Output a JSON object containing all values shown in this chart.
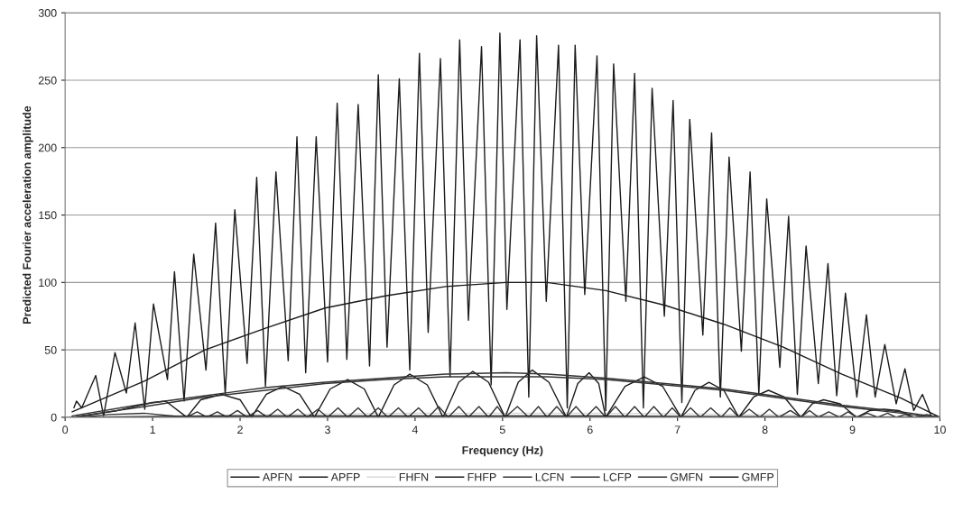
{
  "chart_data": {
    "type": "line",
    "xlabel": "Frequency (Hz)",
    "ylabel": "Predicted Fourier acceleration amplitude",
    "xlim": [
      0,
      10
    ],
    "xticks": [
      0,
      1,
      2,
      3,
      4,
      5,
      6,
      7,
      8,
      9,
      10
    ],
    "ylim": [
      0,
      300
    ],
    "yticks": [
      0,
      50,
      100,
      150,
      200,
      250,
      300
    ],
    "grid": "y",
    "legend": "bottom",
    "series": [
      {
        "name": "APFN",
        "color": "#1a1a1a",
        "x": [
          0.1,
          0.13,
          0.19,
          0.35,
          0.44,
          0.57,
          0.7,
          0.8,
          0.91,
          1.01,
          1.17,
          1.25,
          1.36,
          1.47,
          1.61,
          1.72,
          1.83,
          1.94,
          2.08,
          2.19,
          2.29,
          2.41,
          2.55,
          2.65,
          2.75,
          2.87,
          3.0,
          3.11,
          3.22,
          3.35,
          3.48,
          3.58,
          3.68,
          3.82,
          3.94,
          4.05,
          4.15,
          4.29,
          4.4,
          4.51,
          4.61,
          4.76,
          4.87,
          4.97,
          5.05,
          5.2,
          5.3,
          5.39,
          5.5,
          5.64,
          5.74,
          5.83,
          5.94,
          6.08,
          6.18,
          6.27,
          6.41,
          6.51,
          6.61,
          6.71,
          6.85,
          6.95,
          7.05,
          7.14,
          7.29,
          7.39,
          7.49,
          7.59,
          7.73,
          7.83,
          7.93,
          8.02,
          8.17,
          8.27,
          8.37,
          8.47,
          8.61,
          8.72,
          8.82,
          8.92,
          9.05,
          9.16,
          9.26,
          9.37,
          9.5,
          9.6,
          9.7,
          9.8,
          9.9,
          10
        ],
        "values": [
          7,
          12,
          7,
          31,
          1,
          48,
          18,
          70,
          6,
          84,
          28,
          108,
          12,
          121,
          35,
          144,
          17,
          154,
          40,
          178,
          23,
          182,
          42,
          208,
          33,
          208,
          41,
          233,
          43,
          232,
          38,
          254,
          52,
          251,
          35,
          270,
          63,
          266,
          30,
          280,
          72,
          275,
          24,
          285,
          80,
          280,
          15,
          283,
          86,
          276,
          7,
          276,
          91,
          268,
          5,
          262,
          86,
          255,
          7,
          244,
          75,
          235,
          11,
          221,
          61,
          211,
          15,
          193,
          49,
          182,
          17,
          162,
          37,
          149,
          17,
          127,
          25,
          114,
          16,
          92,
          15,
          76,
          15,
          54,
          10,
          36,
          5,
          17,
          1,
          0
        ]
      },
      {
        "name": "APFP",
        "color": "#1a1a1a",
        "x": [
          0.08,
          0.91,
          1.6,
          2.29,
          2.97,
          3.66,
          4.35,
          5.04,
          5.51,
          6.18,
          6.86,
          7.53,
          8.21,
          8.88,
          9.56,
          10
        ],
        "values": [
          4,
          27,
          50,
          66,
          81,
          90,
          97,
          100,
          100,
          94,
          83,
          69,
          52,
          32,
          14,
          0
        ]
      },
      {
        "name": "FHFN",
        "color": "#d9d9d9",
        "x": [
          0.1,
          2,
          4,
          6,
          8,
          10
        ],
        "values": [
          0,
          2,
          3,
          3,
          2,
          0
        ]
      },
      {
        "name": "FHFP",
        "color": "#1a1a1a",
        "x": [
          0.1,
          0.6,
          1.0,
          1.15,
          1.39,
          1.55,
          1.79,
          2.0,
          2.13,
          2.3,
          2.49,
          2.68,
          2.85,
          3.03,
          3.23,
          3.42,
          3.58,
          3.76,
          3.94,
          4.14,
          4.32,
          4.5,
          4.66,
          4.84,
          5.03,
          5.18,
          5.34,
          5.53,
          5.73,
          5.86,
          5.99,
          6.1,
          6.18,
          6.4,
          6.62,
          6.83,
          7.04,
          7.2,
          7.36,
          7.53,
          7.7,
          7.87,
          8.04,
          8.22,
          8.41,
          8.54,
          8.67,
          8.86,
          9.05,
          9.2,
          9.36,
          9.53,
          9.7,
          10
        ],
        "values": [
          0,
          5,
          11,
          12,
          0,
          13,
          17,
          13,
          0,
          17,
          23,
          17,
          0,
          21,
          28,
          21,
          0,
          24,
          32,
          24,
          0,
          26,
          34,
          26,
          0,
          26,
          35,
          26,
          0,
          25,
          33,
          25,
          0,
          23,
          30,
          23,
          0,
          20,
          26,
          20,
          0,
          15,
          20,
          15,
          0,
          10,
          13,
          10,
          0,
          5,
          6,
          5,
          0,
          0
        ]
      },
      {
        "name": "LCFN",
        "color": "#333333",
        "x": [
          0.15,
          0.5,
          0.9,
          1.39,
          1.51,
          1.62,
          1.74,
          1.85,
          1.97,
          2.08,
          2.2,
          2.31,
          2.43,
          2.54,
          2.66,
          2.77,
          2.89,
          3.0,
          3.12,
          3.23,
          3.35,
          3.46,
          3.58,
          3.69,
          3.81,
          3.92,
          4.04,
          4.15,
          4.27,
          4.38,
          4.5,
          4.61,
          4.73,
          4.84,
          4.94,
          5.03,
          5.17,
          5.3,
          5.41,
          5.51,
          5.62,
          5.73,
          5.84,
          5.95,
          6.07,
          6.18,
          6.29,
          6.4,
          6.51,
          6.62,
          6.73,
          6.84,
          6.94,
          7.04,
          7.15,
          7.26,
          7.38,
          7.5,
          7.6,
          7.7,
          7.82,
          7.94,
          8.05,
          8.16,
          8.29,
          8.41,
          8.51,
          8.61,
          8.73,
          8.85,
          8.95,
          9.05,
          9.17,
          9.29,
          9.4,
          9.5,
          9.6,
          9.7,
          9.85,
          9.97
        ],
        "values": [
          0,
          2,
          3,
          0,
          4,
          0,
          4,
          0,
          5,
          0,
          5,
          0,
          6,
          0,
          6,
          0,
          6,
          0,
          7,
          0,
          7,
          0,
          7,
          0,
          7,
          0,
          7,
          0,
          8,
          0,
          8,
          0,
          8,
          0,
          8,
          0,
          8,
          0,
          8,
          0,
          8,
          0,
          8,
          0,
          8,
          0,
          8,
          0,
          8,
          0,
          8,
          0,
          7,
          0,
          7,
          0,
          7,
          0,
          7,
          0,
          6,
          0,
          6,
          0,
          5,
          0,
          5,
          0,
          4,
          0,
          4,
          0,
          3,
          0,
          3,
          0,
          2,
          0,
          2,
          0
        ]
      },
      {
        "name": "LCFP",
        "color": "#333333",
        "x": [
          0.08,
          0.91,
          1.6,
          2.29,
          2.97,
          3.66,
          4.35,
          5.04,
          5.51,
          6.18,
          6.86,
          7.53,
          8.21,
          8.88,
          9.56,
          10
        ],
        "values": [
          1,
          10,
          16,
          22,
          26,
          29,
          32,
          33,
          32,
          29,
          25,
          21,
          15,
          9,
          4,
          0
        ]
      },
      {
        "name": "GMFN",
        "color": "#333333",
        "x": [
          0.12,
          0.91,
          1.6,
          2.29,
          2.97,
          3.66,
          4.35,
          5.04,
          5.51,
          6.18,
          6.86,
          7.53,
          8.21,
          8.88,
          9.56,
          9.92
        ],
        "values": [
          0.5,
          8,
          15,
          20,
          25,
          28,
          30,
          30,
          30,
          28,
          24,
          20,
          14,
          8,
          3,
          0
        ]
      },
      {
        "name": "GMFP",
        "color": "#1a1a1a",
        "x": [
          0.06,
          2,
          4,
          6,
          8,
          9.96
        ],
        "values": [
          0,
          1,
          1,
          1,
          0.5,
          0
        ]
      }
    ]
  }
}
